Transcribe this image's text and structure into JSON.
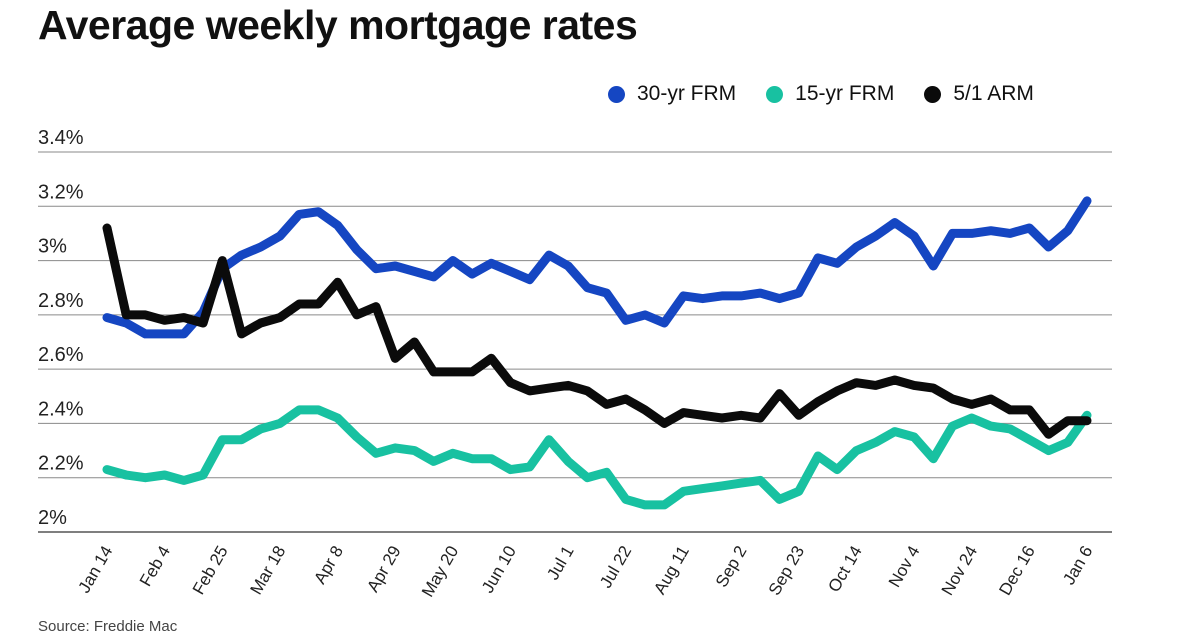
{
  "title": "Average weekly mortgage rates",
  "source": "Source: Freddie Mac",
  "chart_data": {
    "type": "line",
    "title": "Average weekly mortgage rates",
    "xlabel": "",
    "ylabel": "",
    "ylim": [
      2.0,
      3.4
    ],
    "y_ticks": [
      {
        "value": 3.4,
        "label": "3.4%"
      },
      {
        "value": 3.2,
        "label": "3.2%"
      },
      {
        "value": 3.0,
        "label": "3%"
      },
      {
        "value": 2.8,
        "label": "2.8%"
      },
      {
        "value": 2.6,
        "label": "2.6%"
      },
      {
        "value": 2.4,
        "label": "2.4%"
      },
      {
        "value": 2.2,
        "label": "2.2%"
      },
      {
        "value": 2.0,
        "label": "2%"
      }
    ],
    "x_tick_labels": [
      {
        "index": 0,
        "label": "Jan 14"
      },
      {
        "index": 3,
        "label": "Feb 4"
      },
      {
        "index": 6,
        "label": "Feb 25"
      },
      {
        "index": 9,
        "label": "Mar 18"
      },
      {
        "index": 12,
        "label": "Apr 8"
      },
      {
        "index": 15,
        "label": "Apr 29"
      },
      {
        "index": 18,
        "label": "May 20"
      },
      {
        "index": 21,
        "label": "Jun 10"
      },
      {
        "index": 24,
        "label": "Jul 1"
      },
      {
        "index": 27,
        "label": "Jul 22"
      },
      {
        "index": 30,
        "label": "Aug 11"
      },
      {
        "index": 33,
        "label": "Sep 2"
      },
      {
        "index": 36,
        "label": "Sep 23"
      },
      {
        "index": 39,
        "label": "Oct 14"
      },
      {
        "index": 42,
        "label": "Nov 4"
      },
      {
        "index": 45,
        "label": "Nov 24"
      },
      {
        "index": 48,
        "label": "Dec 16"
      },
      {
        "index": 51,
        "label": "Jan 6"
      }
    ],
    "legend_position": "top-right",
    "series": [
      {
        "name": "30-yr FRM",
        "color": "#1546c2",
        "values": [
          2.79,
          2.77,
          2.73,
          2.73,
          2.73,
          2.81,
          2.97,
          3.02,
          3.05,
          3.09,
          3.17,
          3.18,
          3.13,
          3.04,
          2.97,
          2.98,
          2.96,
          2.94,
          3.0,
          2.95,
          2.99,
          2.96,
          2.93,
          3.02,
          2.98,
          2.9,
          2.88,
          2.78,
          2.8,
          2.77,
          2.87,
          2.86,
          2.87,
          2.87,
          2.88,
          2.86,
          2.88,
          3.01,
          2.99,
          3.05,
          3.09,
          3.14,
          3.09,
          2.98,
          3.1,
          3.1,
          3.11,
          3.1,
          3.12,
          3.05,
          3.11,
          3.22
        ]
      },
      {
        "name": "15-yr FRM",
        "color": "#18c1a1",
        "values": [
          2.23,
          2.21,
          2.2,
          2.21,
          2.19,
          2.21,
          2.34,
          2.34,
          2.38,
          2.4,
          2.45,
          2.45,
          2.42,
          2.35,
          2.29,
          2.31,
          2.3,
          2.26,
          2.29,
          2.27,
          2.27,
          2.23,
          2.24,
          2.34,
          2.26,
          2.2,
          2.22,
          2.12,
          2.1,
          2.1,
          2.15,
          2.16,
          2.17,
          2.18,
          2.19,
          2.12,
          2.15,
          2.28,
          2.23,
          2.3,
          2.33,
          2.37,
          2.35,
          2.27,
          2.39,
          2.42,
          2.39,
          2.38,
          2.34,
          2.3,
          2.33,
          2.43
        ]
      },
      {
        "name": "5/1 ARM",
        "color": "#0b0b0b",
        "values": [
          3.12,
          2.8,
          2.8,
          2.78,
          2.79,
          2.77,
          3.0,
          2.73,
          2.77,
          2.79,
          2.84,
          2.84,
          2.92,
          2.8,
          2.83,
          2.64,
          2.7,
          2.59,
          2.59,
          2.59,
          2.64,
          2.55,
          2.52,
          2.53,
          2.54,
          2.52,
          2.47,
          2.49,
          2.45,
          2.4,
          2.44,
          2.43,
          2.42,
          2.43,
          2.42,
          2.51,
          2.43,
          2.48,
          2.52,
          2.55,
          2.54,
          2.56,
          2.54,
          2.53,
          2.49,
          2.47,
          2.49,
          2.45,
          2.45,
          2.36,
          2.41,
          2.41
        ]
      }
    ]
  }
}
